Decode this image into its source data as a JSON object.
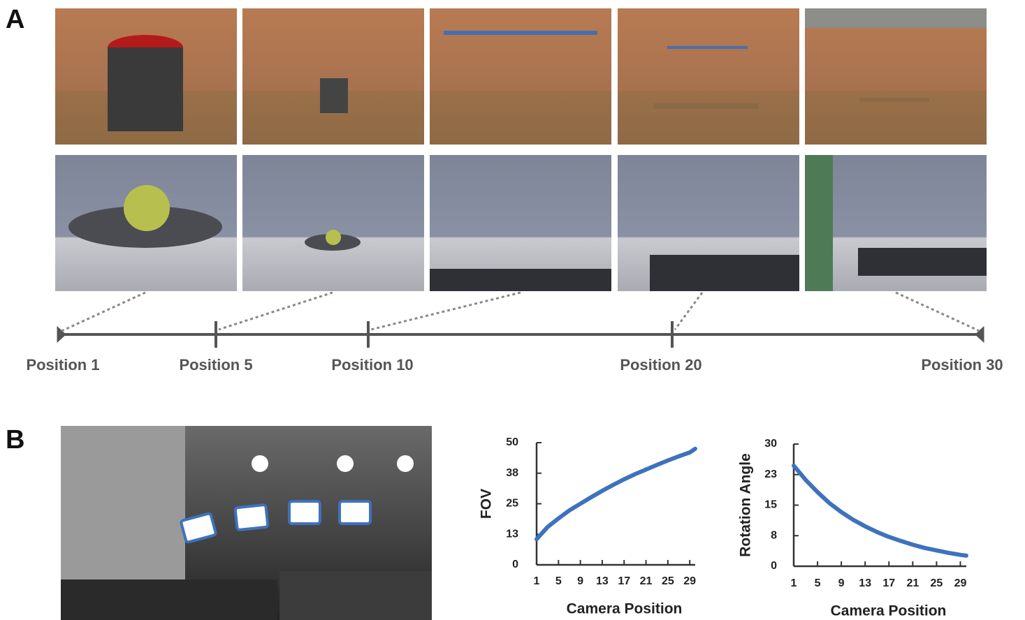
{
  "panels": {
    "a_label": "A",
    "b_label": "B"
  },
  "timeline": {
    "labels": [
      "Position 1",
      "Position 5",
      "Position 10",
      "Position 20",
      "Position 30"
    ]
  },
  "chart_data": [
    {
      "type": "line",
      "ylabel": "FOV",
      "xlabel": "Camera Position",
      "x": [
        1,
        3,
        5,
        7,
        9,
        11,
        13,
        15,
        17,
        19,
        21,
        23,
        25,
        27,
        29,
        30
      ],
      "values": [
        10.5,
        15.5,
        19,
        22.3,
        25,
        27.7,
        30.3,
        32.7,
        35,
        37.1,
        39,
        40.9,
        42.7,
        44.4,
        46,
        47.5
      ],
      "color": "#3e72bd",
      "xlim": [
        1,
        30
      ],
      "xticks": [
        1,
        5,
        9,
        13,
        17,
        21,
        25,
        29
      ],
      "ylim": [
        0,
        50
      ],
      "yticks": [
        0,
        {
          "value": 12.5,
          "label": "13"
        },
        25,
        {
          "value": 37.5,
          "label": "38"
        },
        50
      ]
    },
    {
      "type": "line",
      "ylabel": "Rotation Angle",
      "xlabel": "Camera Position",
      "x": [
        1,
        3,
        5,
        7,
        9,
        11,
        13,
        15,
        17,
        19,
        21,
        23,
        25,
        27,
        29,
        30
      ],
      "values": [
        24.7,
        21.2,
        18.2,
        15.5,
        13.3,
        11.4,
        9.8,
        8.4,
        7.2,
        6.2,
        5.3,
        4.5,
        3.9,
        3.3,
        2.8,
        2.6
      ],
      "color": "#3e72bd",
      "xlim": [
        1,
        30
      ],
      "xticks": [
        1,
        5,
        9,
        13,
        17,
        21,
        25,
        29
      ],
      "ylim": [
        0,
        30
      ],
      "yticks": [
        0,
        {
          "value": 7.5,
          "label": "8"
        },
        15,
        {
          "value": 22.5,
          "label": "23"
        },
        30
      ]
    }
  ]
}
